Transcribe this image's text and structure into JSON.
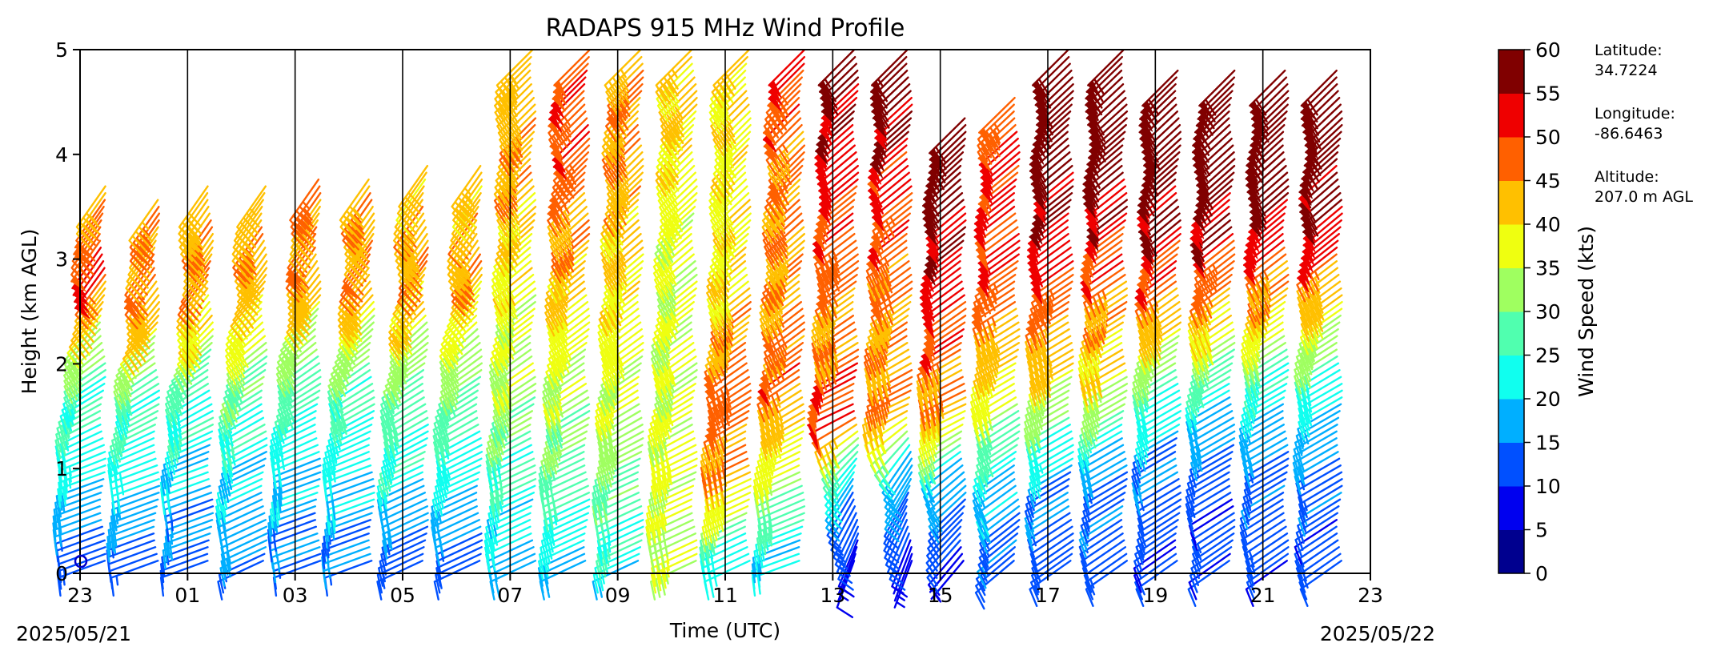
{
  "chart_data": {
    "type": "wind-barb-profile",
    "title": "RADAPS 915 MHz Wind Profile",
    "xlabel": "Time (UTC)",
    "ylabel": "Height (km AGL)",
    "ylim": [
      0,
      5
    ],
    "yticks": [
      "0",
      "1",
      "2",
      "3",
      "4",
      "5"
    ],
    "xticks": [
      "23",
      "01",
      "03",
      "05",
      "07",
      "09",
      "11",
      "13",
      "15",
      "17",
      "19",
      "21",
      "23"
    ],
    "start_date": "2025/05/21",
    "end_date": "2025/05/22",
    "hourly_dividers": true,
    "colorbar": {
      "label": "Wind Speed (kts)",
      "ticks": [
        "0",
        "5",
        "10",
        "15",
        "20",
        "25",
        "30",
        "35",
        "40",
        "45",
        "50",
        "55",
        "60"
      ],
      "colors": [
        "#00008f",
        "#0000ef",
        "#0050ff",
        "#00afff",
        "#10ffef",
        "#50ffaf",
        "#9fff60",
        "#efff10",
        "#ffc000",
        "#ff6000",
        "#ef0000",
        "#800000"
      ]
    },
    "site": {
      "lat_label": "Latitude:",
      "lat_value": "34.7224",
      "lon_label": "Longitude:",
      "lon_value": "-86.6463",
      "alt_label": "Altitude:",
      "alt_value": "207.0 m AGL"
    },
    "profiles": [
      {
        "hour": 0,
        "top_km": 3.7,
        "layers": [
          [
            0.2,
            12,
            250
          ],
          [
            1.0,
            21,
            250
          ],
          [
            2.0,
            27,
            235
          ],
          [
            2.5,
            38,
            220
          ],
          [
            3.0,
            52,
            215
          ],
          [
            3.7,
            44,
            215
          ]
        ]
      },
      {
        "hour": 1,
        "top_km": 3.6,
        "layers": [
          [
            0.2,
            12,
            250
          ],
          [
            1.0,
            21,
            250
          ],
          [
            2.0,
            28,
            235
          ],
          [
            2.5,
            42,
            220
          ],
          [
            3.0,
            46,
            215
          ],
          [
            3.6,
            44,
            215
          ]
        ]
      },
      {
        "hour": 2,
        "top_km": 3.7,
        "layers": [
          [
            0.2,
            13,
            250
          ],
          [
            1.0,
            20,
            250
          ],
          [
            2.0,
            28,
            235
          ],
          [
            2.5,
            40,
            220
          ],
          [
            3.0,
            46,
            215
          ],
          [
            3.7,
            42,
            215
          ]
        ]
      },
      {
        "hour": 3,
        "top_km": 3.7,
        "layers": [
          [
            0.2,
            16,
            245
          ],
          [
            1.0,
            20,
            245
          ],
          [
            2.0,
            30,
            235
          ],
          [
            2.5,
            38,
            225
          ],
          [
            3.0,
            44,
            215
          ],
          [
            3.7,
            42,
            215
          ]
        ]
      },
      {
        "hour": 4,
        "top_km": 3.8,
        "layers": [
          [
            0.2,
            14,
            250
          ],
          [
            1.0,
            20,
            250
          ],
          [
            2.0,
            28,
            235
          ],
          [
            2.5,
            36,
            225
          ],
          [
            3.0,
            46,
            215
          ],
          [
            3.8,
            44,
            215
          ]
        ]
      },
      {
        "hour": 5,
        "top_km": 3.8,
        "layers": [
          [
            0.2,
            14,
            250
          ],
          [
            1.0,
            21,
            250
          ],
          [
            2.0,
            28,
            235
          ],
          [
            2.5,
            36,
            225
          ],
          [
            3.0,
            46,
            215
          ],
          [
            3.8,
            42,
            215
          ]
        ]
      },
      {
        "hour": 6,
        "top_km": 3.9,
        "layers": [
          [
            0.2,
            12,
            245
          ],
          [
            1.0,
            22,
            245
          ],
          [
            2.0,
            30,
            235
          ],
          [
            2.5,
            38,
            225
          ],
          [
            3.0,
            44,
            215
          ],
          [
            3.9,
            42,
            215
          ]
        ]
      },
      {
        "hour": 7,
        "top_km": 3.9,
        "layers": [
          [
            0.2,
            12,
            245
          ],
          [
            1.0,
            22,
            245
          ],
          [
            2.0,
            30,
            235
          ],
          [
            2.5,
            36,
            225
          ],
          [
            3.0,
            44,
            215
          ],
          [
            3.9,
            42,
            215
          ]
        ]
      },
      {
        "hour": 8,
        "top_km": 5.0,
        "layers": [
          [
            0.2,
            18,
            245
          ],
          [
            1.0,
            25,
            245
          ],
          [
            2.0,
            34,
            235
          ],
          [
            3.0,
            38,
            230
          ],
          [
            4.0,
            44,
            225
          ],
          [
            5.0,
            42,
            225
          ]
        ]
      },
      {
        "hour": 9,
        "top_km": 5.0,
        "layers": [
          [
            0.2,
            20,
            245
          ],
          [
            1.0,
            28,
            245
          ],
          [
            2.0,
            34,
            235
          ],
          [
            3.0,
            42,
            230
          ],
          [
            4.0,
            48,
            225
          ],
          [
            5.0,
            50,
            225
          ]
        ]
      },
      {
        "hour": 10,
        "top_km": 5.0,
        "layers": [
          [
            0.2,
            22,
            245
          ],
          [
            1.0,
            30,
            245
          ],
          [
            2.0,
            36,
            235
          ],
          [
            3.0,
            40,
            230
          ],
          [
            4.0,
            44,
            225
          ],
          [
            5.0,
            46,
            225
          ]
        ]
      },
      {
        "hour": 11,
        "top_km": 5.0,
        "layers": [
          [
            0.2,
            34,
            245
          ],
          [
            1.0,
            37,
            245
          ],
          [
            2.0,
            36,
            235
          ],
          [
            3.0,
            36,
            230
          ],
          [
            4.0,
            38,
            225
          ],
          [
            5.0,
            42,
            225
          ]
        ]
      },
      {
        "hour": 12,
        "top_km": 5.0,
        "layers": [
          [
            0.2,
            22,
            245
          ],
          [
            1.0,
            44,
            245
          ],
          [
            2.0,
            48,
            235
          ],
          [
            3.0,
            40,
            230
          ],
          [
            4.0,
            38,
            225
          ],
          [
            5.0,
            40,
            225
          ]
        ]
      },
      {
        "hour": 13,
        "top_km": 5.0,
        "layers": [
          [
            0.2,
            20,
            250
          ],
          [
            1.0,
            34,
            245
          ],
          [
            2.0,
            48,
            235
          ],
          [
            3.0,
            44,
            230
          ],
          [
            4.0,
            46,
            225
          ],
          [
            5.0,
            50,
            225
          ]
        ]
      },
      {
        "hour": 14,
        "top_km": 5.0,
        "layers": [
          [
            0.2,
            8,
            200
          ],
          [
            1.0,
            18,
            215
          ],
          [
            1.6,
            52,
            245
          ],
          [
            2.5,
            44,
            235
          ],
          [
            4.0,
            52,
            230
          ],
          [
            5.0,
            58,
            225
          ]
        ]
      },
      {
        "hour": 15,
        "top_km": 5.0,
        "layers": [
          [
            0.2,
            8,
            200
          ],
          [
            1.2,
            20,
            215
          ],
          [
            1.6,
            46,
            245
          ],
          [
            2.5,
            44,
            235
          ],
          [
            4.0,
            52,
            230
          ],
          [
            5.0,
            60,
            225
          ]
        ]
      },
      {
        "hour": 16,
        "top_km": 4.4,
        "layers": [
          [
            0.2,
            8,
            220
          ],
          [
            1.0,
            18,
            230
          ],
          [
            1.6,
            42,
            245
          ],
          [
            2.5,
            50,
            235
          ],
          [
            3.5,
            56,
            230
          ],
          [
            4.4,
            60,
            225
          ]
        ]
      },
      {
        "hour": 17,
        "top_km": 4.6,
        "layers": [
          [
            0.2,
            12,
            230
          ],
          [
            1.0,
            20,
            235
          ],
          [
            2.0,
            40,
            240
          ],
          [
            3.0,
            50,
            235
          ],
          [
            4.0,
            52,
            230
          ],
          [
            4.6,
            46,
            225
          ]
        ]
      },
      {
        "hour": 18,
        "top_km": 5.0,
        "layers": [
          [
            0.2,
            12,
            235
          ],
          [
            1.0,
            16,
            240
          ],
          [
            2.0,
            40,
            240
          ],
          [
            3.0,
            50,
            235
          ],
          [
            4.0,
            58,
            230
          ],
          [
            5.0,
            60,
            225
          ]
        ]
      },
      {
        "hour": 19,
        "top_km": 5.0,
        "layers": [
          [
            0.2,
            12,
            235
          ],
          [
            1.0,
            14,
            240
          ],
          [
            2.0,
            38,
            240
          ],
          [
            3.0,
            48,
            235
          ],
          [
            4.0,
            58,
            230
          ],
          [
            5.0,
            60,
            225
          ]
        ]
      },
      {
        "hour": 20,
        "top_km": 4.8,
        "layers": [
          [
            0.2,
            12,
            235
          ],
          [
            1.0,
            13,
            240
          ],
          [
            1.8,
            24,
            240
          ],
          [
            2.5,
            42,
            235
          ],
          [
            3.5,
            56,
            230
          ],
          [
            4.8,
            60,
            225
          ]
        ]
      },
      {
        "hour": 21,
        "top_km": 4.8,
        "layers": [
          [
            0.2,
            12,
            235
          ],
          [
            1.0,
            12,
            240
          ],
          [
            1.8,
            22,
            240
          ],
          [
            2.5,
            40,
            235
          ],
          [
            3.5,
            56,
            230
          ],
          [
            4.8,
            60,
            225
          ]
        ]
      },
      {
        "hour": 22,
        "top_km": 4.8,
        "layers": [
          [
            0.2,
            12,
            235
          ],
          [
            1.0,
            13,
            240
          ],
          [
            1.8,
            22,
            240
          ],
          [
            2.5,
            38,
            235
          ],
          [
            3.5,
            56,
            230
          ],
          [
            4.8,
            60,
            225
          ]
        ]
      },
      {
        "hour": 23,
        "top_km": 4.8,
        "layers": [
          [
            0.2,
            12,
            235
          ],
          [
            1.0,
            13,
            240
          ],
          [
            1.8,
            22,
            240
          ],
          [
            2.5,
            38,
            235
          ],
          [
            3.5,
            56,
            230
          ],
          [
            4.8,
            60,
            225
          ]
        ]
      }
    ]
  }
}
